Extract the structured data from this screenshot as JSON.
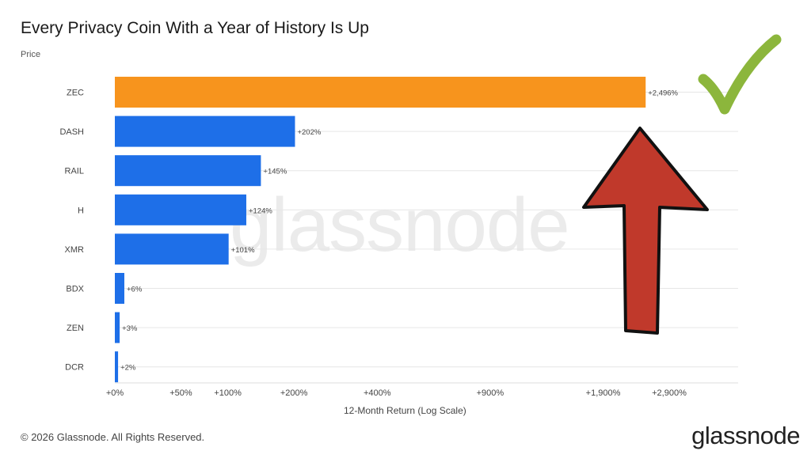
{
  "title": "Every Privacy Coin With a Year of History Is Up",
  "subtitle": "Price",
  "watermark": "glassnode",
  "copyright": "© 2026 Glassnode. All Rights Reserved.",
  "logo": "glassnode",
  "colors": {
    "highlight": "#f7941d",
    "bar": "#1e6fe8",
    "grid": "#e6e6e6",
    "arrow_fill": "#c0392b",
    "check": "#8cb63c"
  },
  "annotations": [
    "up-arrow",
    "check-mark"
  ],
  "chart_data": {
    "type": "bar",
    "orientation": "horizontal",
    "title": "Every Privacy Coin With a Year of History Is Up",
    "ylabel": "",
    "xlabel": "12-Month Return (Log Scale)",
    "x_scale": "log(1+return)",
    "xlim": [
      0,
      2900
    ],
    "grid": true,
    "categories": [
      "ZEC",
      "DASH",
      "RAIL",
      "H",
      "XMR",
      "BDX",
      "ZEN",
      "DCR"
    ],
    "values": [
      2496,
      202,
      145,
      124,
      101,
      6,
      3,
      2
    ],
    "data_labels": [
      "+2,496%",
      "+202%",
      "+145%",
      "+124%",
      "+101%",
      "+6%",
      "+3%",
      "+2%"
    ],
    "highlight": "ZEC",
    "x_ticks": [
      {
        "value": 0,
        "label": "+0%"
      },
      {
        "value": 50,
        "label": "+50%"
      },
      {
        "value": 100,
        "label": "+100%"
      },
      {
        "value": 200,
        "label": "+200%"
      },
      {
        "value": 400,
        "label": "+400%"
      },
      {
        "value": 900,
        "label": "+900%"
      },
      {
        "value": 1900,
        "label": "+1,900%"
      },
      {
        "value": 2900,
        "label": "+2,900%"
      }
    ]
  }
}
